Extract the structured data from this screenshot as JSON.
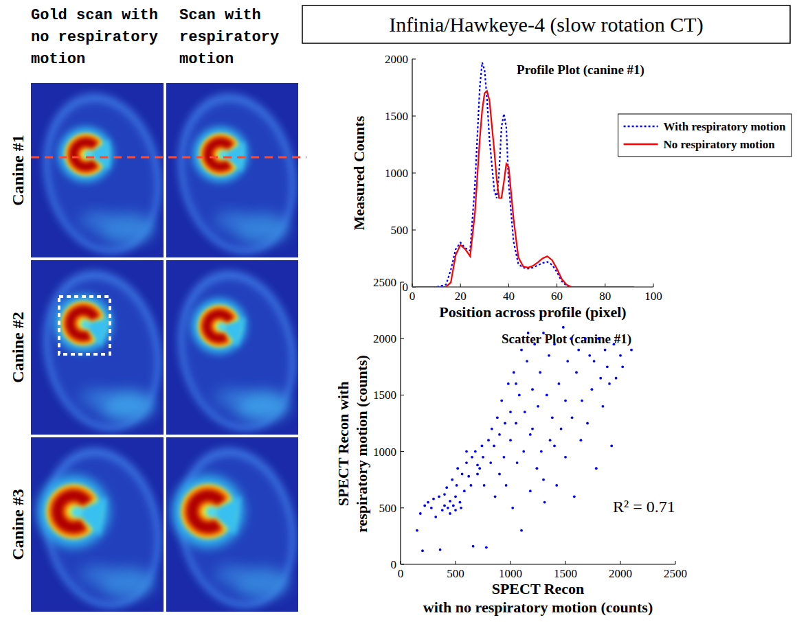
{
  "title": "Infinia/Hawkeye-4 (slow rotation CT)",
  "columns": [
    [
      "Gold scan with",
      "no respiratory",
      "motion"
    ],
    [
      "Scan with",
      "respiratory",
      "motion"
    ]
  ],
  "rows": [
    "Canine #1",
    "Canine #2",
    "Canine #3"
  ],
  "chart_data": [
    {
      "type": "line",
      "title": "Profile Plot (canine #1)",
      "xlabel": "Position across profile (pixel)",
      "ylabel": "Measured Counts",
      "x": [
        0,
        10,
        14,
        16,
        18,
        20,
        22,
        24,
        26,
        28,
        29,
        30,
        31,
        32,
        34,
        35,
        36,
        37,
        38,
        39,
        40,
        42,
        44,
        46,
        48,
        50,
        52,
        54,
        56,
        58,
        60,
        62,
        64,
        66,
        80,
        92
      ],
      "series": [
        {
          "name": "With respiratory motion",
          "color": "#0000ff",
          "line_style": "dotted",
          "values": [
            0,
            0,
            20,
            150,
            330,
            390,
            340,
            320,
            900,
            1750,
            1970,
            1900,
            1650,
            1300,
            850,
            780,
            1000,
            1400,
            1520,
            1400,
            900,
            400,
            200,
            170,
            160,
            170,
            190,
            210,
            220,
            195,
            130,
            50,
            10,
            0,
            0,
            0
          ]
        },
        {
          "name": "No respiratory motion",
          "color": "#ff0000",
          "line_style": "solid",
          "values": [
            0,
            0,
            0,
            40,
            280,
            370,
            330,
            270,
            650,
            1300,
            1550,
            1700,
            1720,
            1640,
            1200,
            950,
            780,
            780,
            920,
            1080,
            1050,
            600,
            260,
            180,
            170,
            185,
            215,
            250,
            270,
            235,
            160,
            70,
            20,
            0,
            0,
            0
          ]
        }
      ],
      "xlim": [
        0,
        100
      ],
      "ylim": [
        0,
        2000
      ],
      "xticks": [
        0,
        20,
        40,
        60,
        80,
        100
      ],
      "yticks": [
        0,
        500,
        1000,
        1500,
        2000
      ],
      "legend": "upper right"
    },
    {
      "type": "scatter",
      "title": "Scatter Plot (canine #1)",
      "xlabel": [
        "SPECT Recon",
        "with no respiratory motion (counts)"
      ],
      "ylabel": [
        "SPECT Recon with",
        "respiratory motion (counts)"
      ],
      "annotation": "R² = 0.71",
      "series": [
        {
          "color": "#0000ff",
          "marker": "dot",
          "x": [
            150,
            180,
            200,
            220,
            250,
            280,
            300,
            320,
            350,
            360,
            380,
            400,
            400,
            420,
            430,
            450,
            450,
            470,
            480,
            500,
            500,
            510,
            520,
            540,
            550,
            560,
            580,
            600,
            600,
            620,
            640,
            650,
            660,
            680,
            700,
            700,
            720,
            740,
            750,
            760,
            780,
            800,
            820,
            830,
            850,
            860,
            880,
            900,
            900,
            920,
            940,
            950,
            960,
            980,
            1000,
            1000,
            1020,
            1030,
            1050,
            1060,
            1080,
            1100,
            1100,
            1120,
            1130,
            1150,
            1160,
            1180,
            1200,
            1200,
            1220,
            1240,
            1250,
            1270,
            1280,
            1300,
            1310,
            1330,
            1350,
            1360,
            1380,
            1400,
            1420,
            1440,
            1460,
            1480,
            1500,
            1500,
            1520,
            1550,
            1560,
            1580,
            1600,
            1620,
            1640,
            1650,
            1680,
            1700,
            1720,
            1740,
            1760,
            1780,
            1800,
            1820,
            1840,
            1860,
            1880,
            1900,
            1920,
            1940,
            1960,
            2000,
            2020,
            2100,
            1300,
            1400,
            1180,
            1050
          ],
          "values": [
            300,
            450,
            120,
            520,
            550,
            500,
            580,
            420,
            600,
            130,
            480,
            520,
            620,
            680,
            500,
            450,
            560,
            750,
            520,
            480,
            600,
            700,
            850,
            550,
            500,
            800,
            650,
            900,
            1000,
            780,
            700,
            950,
            160,
            1000,
            800,
            880,
            850,
            1050,
            950,
            700,
            150,
            1100,
            900,
            1200,
            1050,
            600,
            1300,
            1150,
            800,
            1450,
            950,
            1250,
            700,
            1600,
            1100,
            1350,
            500,
            1700,
            1250,
            900,
            1500,
            1900,
            300,
            1000,
            1350,
            1800,
            2050,
            650,
            1550,
            1200,
            1950,
            850,
            1400,
            1700,
            1000,
            2050,
            550,
            1500,
            1850,
            1100,
            1300,
            1950,
            700,
            1600,
            1200,
            2100,
            1450,
            950,
            1800,
            2000,
            1300,
            600,
            1700,
            1900,
            1100,
            1450,
            2000,
            1250,
            1850,
            1550,
            1800,
            850,
            2000,
            1650,
            1400,
            1900,
            1750,
            1600,
            1050,
            1950,
            1650,
            1850,
            1750,
            1900,
            750,
            1050,
            1150,
            1600
          ]
        }
      ],
      "xlim": [
        0,
        2500
      ],
      "ylim": [
        0,
        2500
      ],
      "xticks": [
        0,
        500,
        1000,
        1500,
        2000,
        2500
      ],
      "yticks": [
        0,
        500,
        1000,
        1500,
        2000,
        2500
      ]
    }
  ]
}
